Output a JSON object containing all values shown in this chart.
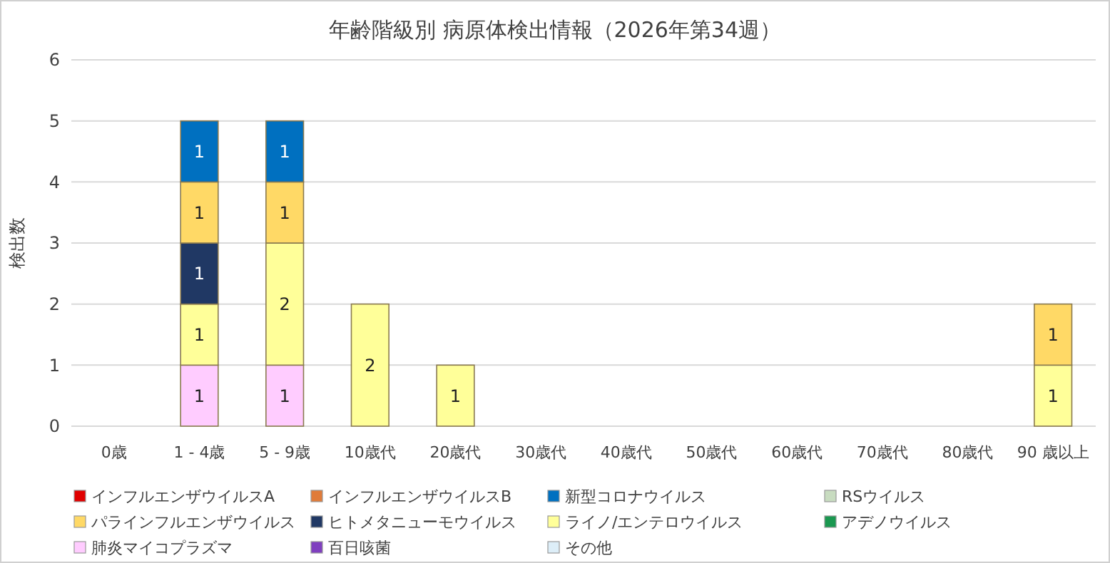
{
  "chart_data": {
    "type": "bar",
    "title": "年齢階級別 病原体検出情報（2026年第34週）",
    "ylabel": "検出数",
    "stacked": true,
    "grid": "y",
    "legend": "bottom",
    "data_labels": true,
    "categories": [
      "0歳",
      "1 - 4歳",
      "5 - 9歳",
      "10歳代",
      "20歳代",
      "30歳代",
      "40歳代",
      "50歳代",
      "60歳代",
      "70歳代",
      "80歳代",
      "90 歳以上"
    ],
    "ylim": [
      0,
      6
    ],
    "yticks": [
      0,
      1,
      2,
      3,
      4,
      5,
      6
    ],
    "series": [
      {
        "name": "その他",
        "color": "#ddeef8",
        "values": [
          null,
          null,
          null,
          null,
          null,
          null,
          null,
          null,
          null,
          null,
          null,
          null
        ]
      },
      {
        "name": "百日咳菌",
        "color": "#7f3fbf",
        "values": [
          null,
          null,
          null,
          null,
          null,
          null,
          null,
          null,
          null,
          null,
          null,
          null
        ]
      },
      {
        "name": "肺炎マイコプラズマ",
        "color": "#ffccff",
        "values": [
          null,
          1,
          1,
          null,
          null,
          null,
          null,
          null,
          null,
          null,
          null,
          null
        ]
      },
      {
        "name": "アデノウイルス",
        "color": "#1a9850",
        "values": [
          null,
          null,
          null,
          null,
          null,
          null,
          null,
          null,
          null,
          null,
          null,
          null
        ]
      },
      {
        "name": "ライノ/エンテロウイルス",
        "color": "#ffff99",
        "values": [
          null,
          1,
          2,
          2,
          1,
          null,
          null,
          null,
          null,
          null,
          null,
          1
        ]
      },
      {
        "name": "ヒトメタニューモウイルス",
        "color": "#203864",
        "values": [
          null,
          1,
          null,
          null,
          null,
          null,
          null,
          null,
          null,
          null,
          null,
          null
        ]
      },
      {
        "name": "パラインフルエンザウイルス",
        "color": "#ffd966",
        "values": [
          null,
          1,
          1,
          null,
          null,
          null,
          null,
          null,
          null,
          null,
          null,
          1
        ]
      },
      {
        "name": "RSウイルス",
        "color": "#c8dcc0",
        "values": [
          null,
          null,
          null,
          null,
          null,
          null,
          null,
          null,
          null,
          null,
          null,
          null
        ]
      },
      {
        "name": "新型コロナウイルス",
        "color": "#0070c0",
        "values": [
          null,
          1,
          1,
          null,
          null,
          null,
          null,
          null,
          null,
          null,
          null,
          null
        ]
      },
      {
        "name": "インフルエンザウイルスB",
        "color": "#e07b39",
        "values": [
          null,
          null,
          null,
          null,
          null,
          null,
          null,
          null,
          null,
          null,
          null,
          null
        ]
      },
      {
        "name": "インフルエンザウイルスA",
        "color": "#e00000",
        "values": [
          null,
          null,
          null,
          null,
          null,
          null,
          null,
          null,
          null,
          null,
          null,
          null
        ]
      }
    ]
  }
}
